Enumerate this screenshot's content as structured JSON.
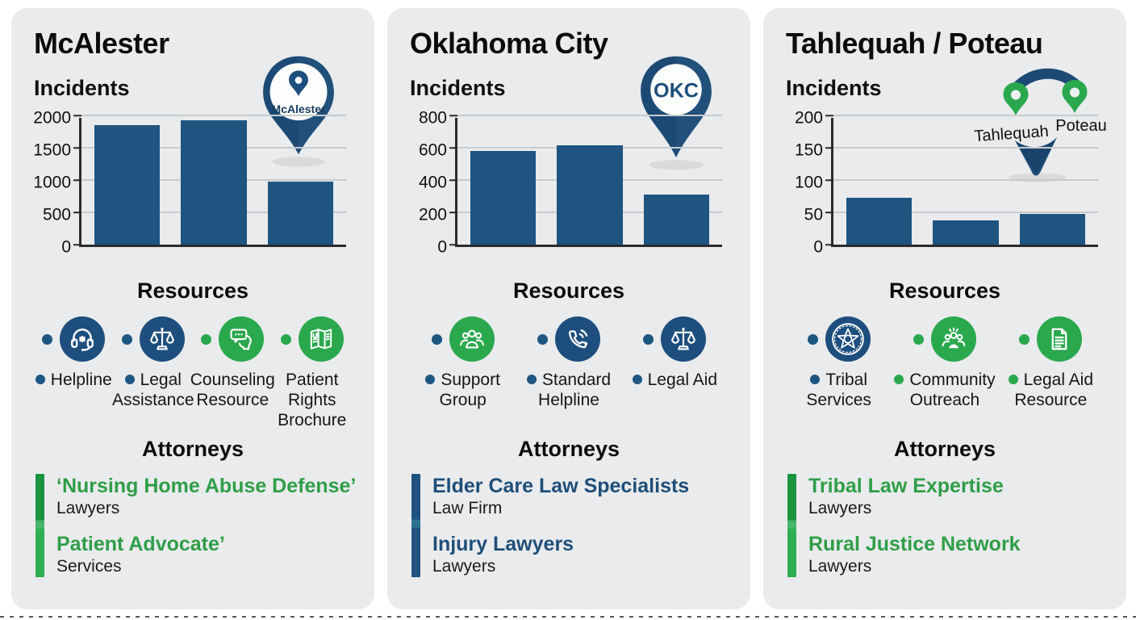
{
  "colors": {
    "navy": "#1d4e7d",
    "bar": "#1f5480",
    "green": "#2aa84d",
    "dot_blue": "#1e5682",
    "attorney_green": "#2f9e47",
    "attorney_blue": "#1f4e79",
    "card_bg": "#e9ebed",
    "grid": "#c8cbce",
    "axis": "#2b2b2b",
    "pin_navy": "#1d4a75",
    "shadow": "#d8dadc"
  },
  "panels": [
    {
      "title": "McAlester",
      "incidents_label": "Incidents",
      "resources_label": "Resources",
      "attorneys_label": "Attorneys",
      "pin": {
        "type": "single-pin",
        "label": "McAlester"
      },
      "resources": [
        {
          "name": "Helpline",
          "icon": "headset-icon",
          "circle_color": "navy",
          "icon_dot": "blue",
          "label_dot": "blue"
        },
        {
          "name": "Legal Assistance",
          "icon": "scales-icon",
          "circle_color": "navy",
          "icon_dot": "blue",
          "label_dot": "blue"
        },
        {
          "name": "Counseling Resource",
          "icon": "counseling-icon",
          "circle_color": "green",
          "icon_dot": "green",
          "label_dot": null
        },
        {
          "name": "Patient Rights Brochure",
          "icon": "brochure-icon",
          "circle_color": "green",
          "icon_dot": "green",
          "label_dot": null
        }
      ],
      "attorneys": [
        {
          "name": "‘Nursing Home Abuse Defense’",
          "subtitle": "Lawyers"
        },
        {
          "name": "Patient Advocate’",
          "subtitle": "Services"
        }
      ],
      "accent": "green"
    },
    {
      "title": "Oklahoma City",
      "incidents_label": "Incidents",
      "resources_label": "Resources",
      "attorneys_label": "Attorneys",
      "pin": {
        "type": "single-pin",
        "label": "OKC"
      },
      "resources": [
        {
          "name": "Support Group",
          "icon": "people-icon",
          "circle_color": "green",
          "icon_dot": "blue",
          "label_dot": "blue"
        },
        {
          "name": "Standard Helpline",
          "icon": "phone-icon",
          "circle_color": "navy",
          "icon_dot": "blue",
          "label_dot": "blue"
        },
        {
          "name": "Legal Aid",
          "icon": "scales-icon",
          "circle_color": "navy",
          "icon_dot": "blue",
          "label_dot": "blue"
        }
      ],
      "attorneys": [
        {
          "name": "Elder Care Law Specialists",
          "subtitle": "Law Firm"
        },
        {
          "name": "Injury Lawyers",
          "subtitle": "Lawyers"
        }
      ],
      "accent": "blue"
    },
    {
      "title": "Tahlequah / Poteau",
      "incidents_label": "Incidents",
      "resources_label": "Resources",
      "attorneys_label": "Attorneys",
      "pin": {
        "type": "dual-pin",
        "labels": [
          "Tahlequah",
          "Poteau"
        ]
      },
      "resources": [
        {
          "name": "Tribal Services",
          "icon": "tribal-seal-icon",
          "circle_color": "navy",
          "icon_dot": "blue",
          "label_dot": "blue"
        },
        {
          "name": "Community Outreach",
          "icon": "community-icon",
          "circle_color": "green",
          "icon_dot": "green",
          "label_dot": "green"
        },
        {
          "name": "Legal Aid Resource",
          "icon": "document-icon",
          "circle_color": "green",
          "icon_dot": "green",
          "label_dot": "green"
        }
      ],
      "attorneys": [
        {
          "name": "Tribal Law Expertise",
          "subtitle": "Lawyers"
        },
        {
          "name": "Rural Justice Network",
          "subtitle": "Lawyers"
        }
      ],
      "accent": "green"
    }
  ],
  "chart_data": [
    {
      "type": "bar",
      "title": "McAlester Incidents",
      "categories": [
        "",
        "",
        ""
      ],
      "values": [
        1850,
        1930,
        980
      ],
      "xlabel": "",
      "ylabel": "",
      "ylim": [
        0,
        2000
      ],
      "yticks": [
        0,
        500,
        1000,
        1500,
        2000
      ],
      "grid": true,
      "bar_color": "#1f5480",
      "legend": false
    },
    {
      "type": "bar",
      "title": "Oklahoma City Incidents",
      "categories": [
        "",
        "",
        ""
      ],
      "values": [
        580,
        615,
        310
      ],
      "xlabel": "",
      "ylabel": "",
      "ylim": [
        0,
        800
      ],
      "yticks": [
        0,
        200,
        400,
        600,
        800
      ],
      "grid": true,
      "bar_color": "#1f5480",
      "legend": false
    },
    {
      "type": "bar",
      "title": "Tahlequah / Poteau Incidents",
      "categories": [
        "",
        "",
        ""
      ],
      "values": [
        72,
        38,
        47
      ],
      "xlabel": "",
      "ylabel": "",
      "ylim": [
        0,
        200
      ],
      "yticks": [
        0,
        50,
        100,
        150,
        200
      ],
      "grid": true,
      "bar_color": "#1f5480",
      "legend": false
    }
  ]
}
